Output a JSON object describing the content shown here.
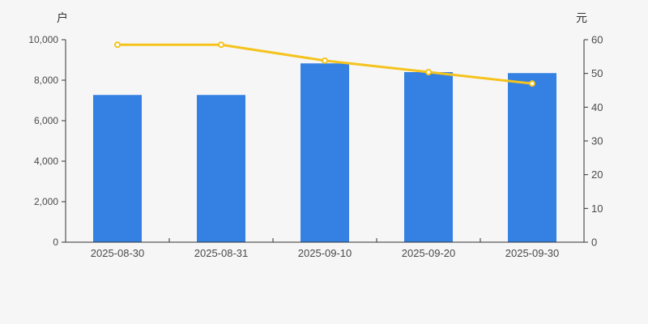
{
  "chart_data": {
    "type": "bar",
    "subtype": "bar-with-line-overlay",
    "categories": [
      "2025-08-30",
      "2025-08-31",
      "2025-09-10",
      "2025-09-20",
      "2025-09-30"
    ],
    "series": [
      {
        "name": "bar-series",
        "type": "bar",
        "axis": "left",
        "values": [
          7270,
          7270,
          8830,
          8400,
          8350
        ],
        "color": "#3581e3"
      },
      {
        "name": "line-series",
        "type": "line",
        "axis": "right",
        "values": [
          58.5,
          58.5,
          53.8,
          50.4,
          47.0
        ],
        "color": "#f5c31d",
        "marker": "circle-hollow"
      }
    ],
    "title": "",
    "xlabel": "",
    "left_axis": {
      "unit": "户",
      "min": 0,
      "max": 10000,
      "step": 2000,
      "tick_labels": [
        "0",
        "2,000",
        "4,000",
        "6,000",
        "8,000",
        "10,000"
      ]
    },
    "right_axis": {
      "unit": "元",
      "min": 0,
      "max": 60,
      "step": 10,
      "tick_labels": [
        "0",
        "10",
        "20",
        "30",
        "40",
        "50",
        "60"
      ]
    },
    "grid": false,
    "legend": "none",
    "colors": {
      "background": "#f6f6f7",
      "axis_line": "#333333",
      "tick_text": "#4a4a4a",
      "bar_fill": "#3581e3",
      "line_stroke": "#f5c31d",
      "marker_fill": "#ffffff"
    }
  }
}
